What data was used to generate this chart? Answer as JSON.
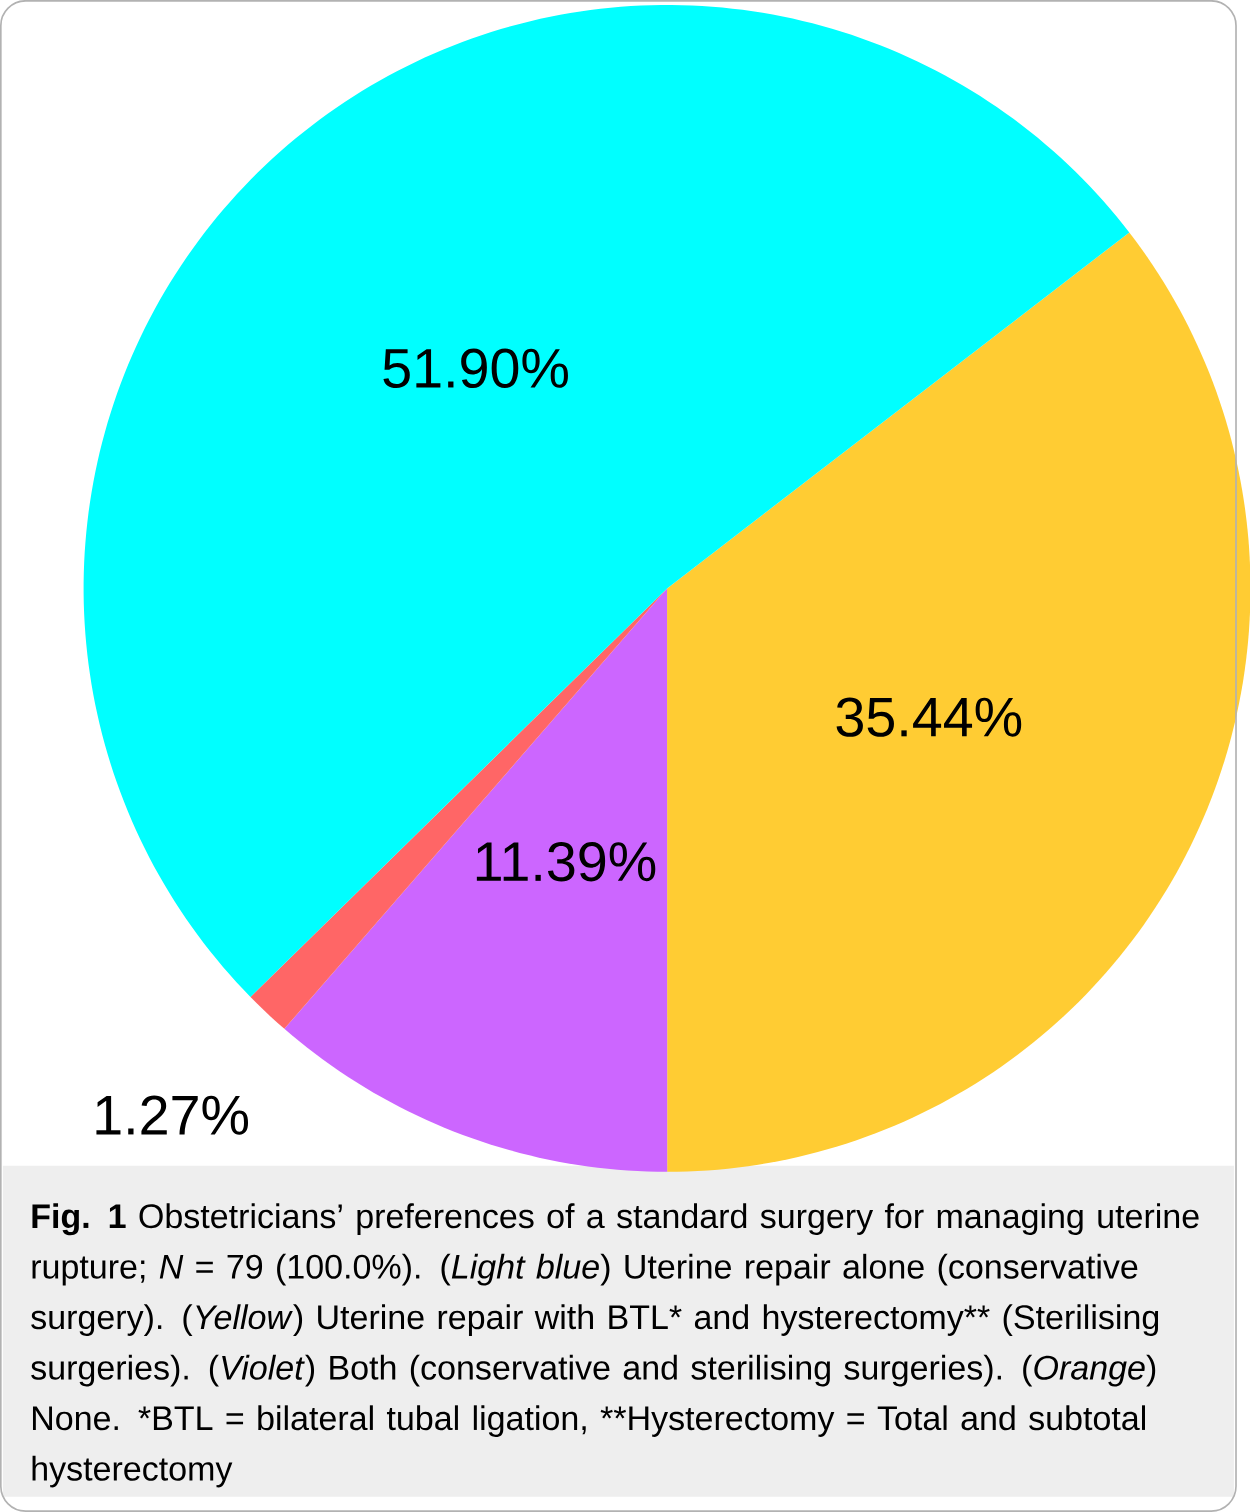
{
  "chart_data": {
    "type": "pie",
    "categories": [
      null,
      null,
      null,
      null
    ],
    "values": [
      35.44,
      11.39,
      1.27,
      51.9
    ],
    "colors": [
      "#ffcc33",
      "#cc66ff",
      "#ff6666",
      "#00ffff"
    ],
    "value_labels": [
      "35.44%",
      "11.39%",
      "1.27%",
      "51.90%"
    ],
    "annotations": [
      "**Fig. 1** Obstetricians’ preferences of a standard surgery for managing uterine rupture; *N* = 79 (100.0%). (*Light blue*) Uterine repair alone (conservative surgery). (*Yellow*) Uterine repair with BTL* and hysterectomy** (Sterilising surgeries). (*Violet*) Both (conservative and sterilising surgeries). (*Orange*) None. *BTL = bilateral tubal ligation, **Hysterectomy = Total and subtotal hysterectomy"
    ]
  }
}
